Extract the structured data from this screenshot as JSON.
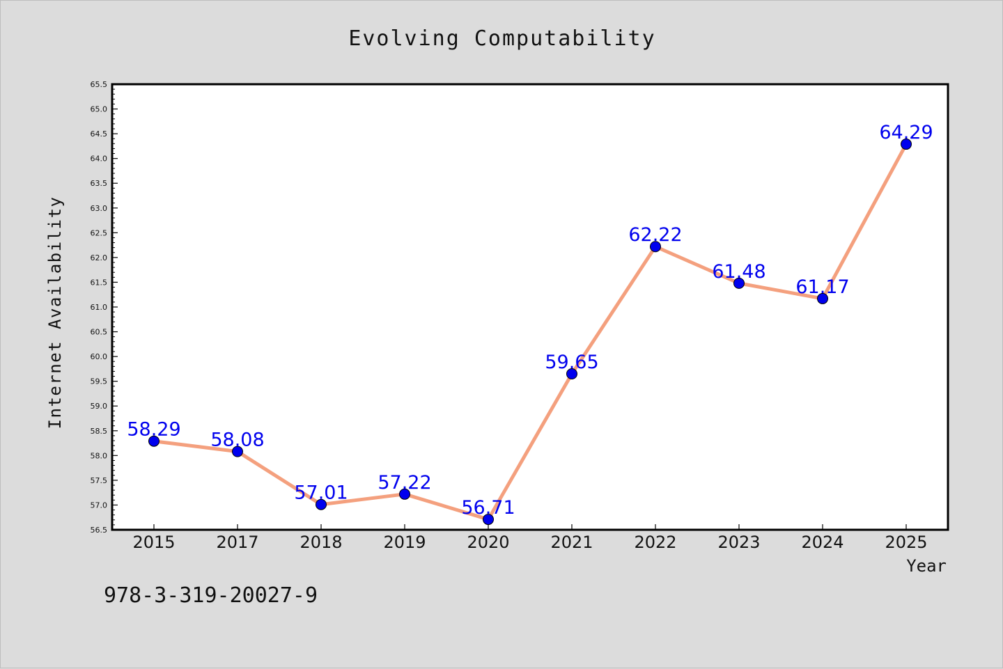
{
  "chart_data": {
    "type": "line",
    "title": "Evolving Computability",
    "xlabel": "Year",
    "ylabel": "Internet Availability",
    "categories": [
      "2015",
      "2017",
      "2018",
      "2019",
      "2020",
      "2021",
      "2022",
      "2023",
      "2024",
      "2025"
    ],
    "series": [
      {
        "values": [
          58.29,
          58.08,
          57.01,
          57.22,
          56.71,
          59.65,
          62.22,
          61.48,
          61.17,
          64.29
        ]
      }
    ],
    "data_labels": [
      "58.29",
      "58.08",
      "57.01",
      "57.22",
      "56.71",
      "59.65",
      "62.22",
      "61.48",
      "61.17",
      "64.29"
    ],
    "ylim": [
      56.5,
      65.5
    ],
    "y_ticks": [
      "56.5",
      "57.0",
      "57.5",
      "58.0",
      "58.5",
      "59.0",
      "59.5",
      "60.0",
      "60.5",
      "61.0",
      "61.5",
      "62.0",
      "62.5",
      "63.0",
      "63.5",
      "64.0",
      "64.5",
      "65.0",
      "65.5"
    ],
    "grid": false,
    "legend": "none",
    "colors": {
      "line": "#f4a07e",
      "marker": "#0000ee",
      "label": "#0000ee",
      "background": "#dcdcdc",
      "plot_area": "#ffffff"
    }
  },
  "footer": {
    "code": "978-3-319-20027-9"
  }
}
